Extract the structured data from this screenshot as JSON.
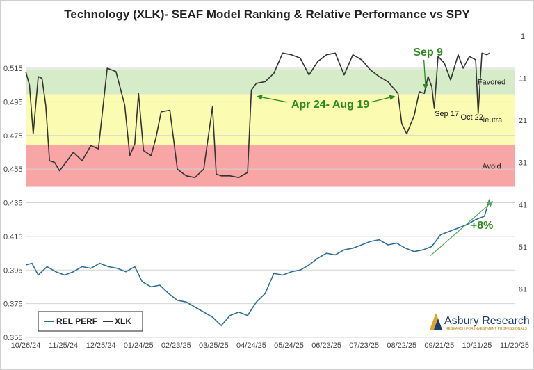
{
  "chart_data": {
    "type": "line",
    "title": "Technology (XLK)- SEAF Model Ranking & Relative Performance vs SPY",
    "left_axis": {
      "ticks": [
        0.355,
        0.375,
        0.395,
        0.415,
        0.435,
        0.455,
        0.475,
        0.495,
        0.515
      ],
      "range": [
        0.355,
        0.539
      ]
    },
    "right_axis": {
      "ticks": [
        1,
        11,
        21,
        31,
        41,
        51,
        61
      ],
      "range": [
        -1.0,
        72.5
      ]
    },
    "x_axis": {
      "labels": [
        "10/26/24",
        "11/25/24",
        "12/25/24",
        "01/24/25",
        "02/23/25",
        "03/25/25",
        "04/24/25",
        "05/24/25",
        "06/23/25",
        "07/23/25",
        "08/22/25",
        "09/21/25",
        "10/21/25",
        "11/20/25"
      ],
      "range": [
        "2024-10-26",
        "2025-11-20"
      ]
    },
    "zones": [
      {
        "label": "Favored",
        "from": 0.5145,
        "to": 0.4995,
        "color": "#d6ebc8"
      },
      {
        "label": "Neutral",
        "from": 0.4995,
        "to": 0.4695,
        "color": "#fbfbb2"
      },
      {
        "label": "Avoid",
        "from": 0.4695,
        "to": 0.4445,
        "color": "#f7a5a5"
      }
    ],
    "series": [
      {
        "name": "REL PERF",
        "color": "#2a6f97",
        "points": [
          [
            "2024-10-26",
            0.398
          ],
          [
            "2024-10-31",
            0.399
          ],
          [
            "2024-11-05",
            0.392
          ],
          [
            "2024-11-12",
            0.397
          ],
          [
            "2024-11-19",
            0.394
          ],
          [
            "2024-11-26",
            0.392
          ],
          [
            "2024-12-03",
            0.394
          ],
          [
            "2024-12-10",
            0.397
          ],
          [
            "2024-12-17",
            0.396
          ],
          [
            "2024-12-24",
            0.399
          ],
          [
            "2024-12-31",
            0.397
          ],
          [
            "2025-01-07",
            0.396
          ],
          [
            "2025-01-14",
            0.394
          ],
          [
            "2025-01-21",
            0.397
          ],
          [
            "2025-01-27",
            0.388
          ],
          [
            "2025-02-03",
            0.385
          ],
          [
            "2025-02-10",
            0.386
          ],
          [
            "2025-02-17",
            0.381
          ],
          [
            "2025-02-24",
            0.377
          ],
          [
            "2025-03-03",
            0.376
          ],
          [
            "2025-03-10",
            0.373
          ],
          [
            "2025-03-17",
            0.37
          ],
          [
            "2025-03-24",
            0.367
          ],
          [
            "2025-03-31",
            0.362
          ],
          [
            "2025-04-07",
            0.368
          ],
          [
            "2025-04-14",
            0.37
          ],
          [
            "2025-04-21",
            0.368
          ],
          [
            "2025-04-28",
            0.376
          ],
          [
            "2025-05-05",
            0.381
          ],
          [
            "2025-05-12",
            0.393
          ],
          [
            "2025-05-19",
            0.392
          ],
          [
            "2025-05-26",
            0.394
          ],
          [
            "2025-06-02",
            0.395
          ],
          [
            "2025-06-09",
            0.398
          ],
          [
            "2025-06-16",
            0.402
          ],
          [
            "2025-06-23",
            0.405
          ],
          [
            "2025-06-30",
            0.404
          ],
          [
            "2025-07-07",
            0.407
          ],
          [
            "2025-07-14",
            0.408
          ],
          [
            "2025-07-21",
            0.41
          ],
          [
            "2025-07-28",
            0.412
          ],
          [
            "2025-08-04",
            0.413
          ],
          [
            "2025-08-11",
            0.41
          ],
          [
            "2025-08-18",
            0.411
          ],
          [
            "2025-08-25",
            0.408
          ],
          [
            "2025-09-01",
            0.406
          ],
          [
            "2025-09-08",
            0.407
          ],
          [
            "2025-09-15",
            0.409
          ],
          [
            "2025-09-22",
            0.416
          ],
          [
            "2025-09-29",
            0.418
          ],
          [
            "2025-10-06",
            0.42
          ],
          [
            "2025-10-13",
            0.422
          ],
          [
            "2025-10-20",
            0.425
          ],
          [
            "2025-10-27",
            0.427
          ],
          [
            "2025-10-31",
            0.437
          ]
        ]
      },
      {
        "name": "XLK",
        "color": "#333333",
        "points": [
          [
            "2024-10-26",
            0.513
          ],
          [
            "2024-10-29",
            0.505
          ],
          [
            "2024-11-01",
            0.476
          ],
          [
            "2024-11-05",
            0.51
          ],
          [
            "2024-11-08",
            0.509
          ],
          [
            "2024-11-11",
            0.493
          ],
          [
            "2024-11-14",
            0.46
          ],
          [
            "2024-11-18",
            0.459
          ],
          [
            "2024-11-22",
            0.454
          ],
          [
            "2024-11-27",
            0.459
          ],
          [
            "2024-12-03",
            0.465
          ],
          [
            "2024-12-10",
            0.46
          ],
          [
            "2024-12-17",
            0.469
          ],
          [
            "2024-12-23",
            0.467
          ],
          [
            "2024-12-30",
            0.515
          ],
          [
            "2025-01-06",
            0.513
          ],
          [
            "2025-01-13",
            0.493
          ],
          [
            "2025-01-17",
            0.463
          ],
          [
            "2025-01-21",
            0.47
          ],
          [
            "2025-01-24",
            0.5
          ],
          [
            "2025-01-28",
            0.466
          ],
          [
            "2025-02-03",
            0.463
          ],
          [
            "2025-02-07",
            0.474
          ],
          [
            "2025-02-11",
            0.489
          ],
          [
            "2025-02-18",
            0.49
          ],
          [
            "2025-02-24",
            0.455
          ],
          [
            "2025-03-03",
            0.451
          ],
          [
            "2025-03-10",
            0.45
          ],
          [
            "2025-03-17",
            0.455
          ],
          [
            "2025-03-24",
            0.492
          ],
          [
            "2025-03-27",
            0.452
          ],
          [
            "2025-03-31",
            0.451
          ],
          [
            "2025-04-07",
            0.451
          ],
          [
            "2025-04-14",
            0.45
          ],
          [
            "2025-04-21",
            0.453
          ],
          [
            "2025-04-24",
            0.502
          ],
          [
            "2025-04-28",
            0.506
          ],
          [
            "2025-05-05",
            0.507
          ],
          [
            "2025-05-12",
            0.512
          ],
          [
            "2025-05-19",
            0.524
          ],
          [
            "2025-05-26",
            0.523
          ],
          [
            "2025-06-02",
            0.521
          ],
          [
            "2025-06-09",
            0.511
          ],
          [
            "2025-06-16",
            0.519
          ],
          [
            "2025-06-23",
            0.523
          ],
          [
            "2025-06-30",
            0.524
          ],
          [
            "2025-07-07",
            0.511
          ],
          [
            "2025-07-14",
            0.523
          ],
          [
            "2025-07-21",
            0.52
          ],
          [
            "2025-07-28",
            0.514
          ],
          [
            "2025-08-04",
            0.51
          ],
          [
            "2025-08-11",
            0.507
          ],
          [
            "2025-08-19",
            0.5
          ],
          [
            "2025-08-22",
            0.482
          ],
          [
            "2025-08-26",
            0.476
          ],
          [
            "2025-09-01",
            0.487
          ],
          [
            "2025-09-05",
            0.501
          ],
          [
            "2025-09-09",
            0.5
          ],
          [
            "2025-09-12",
            0.51
          ],
          [
            "2025-09-15",
            0.504
          ],
          [
            "2025-09-17",
            0.491
          ],
          [
            "2025-09-20",
            0.522
          ],
          [
            "2025-09-25",
            0.518
          ],
          [
            "2025-09-30",
            0.508
          ],
          [
            "2025-10-06",
            0.523
          ],
          [
            "2025-10-10",
            0.515
          ],
          [
            "2025-10-15",
            0.522
          ],
          [
            "2025-10-20",
            0.52
          ],
          [
            "2025-10-22",
            0.488
          ],
          [
            "2025-10-25",
            0.524
          ],
          [
            "2025-10-29",
            0.523
          ],
          [
            "2025-10-31",
            0.524
          ]
        ]
      }
    ],
    "annotations": [
      {
        "text": "Apr 24- Aug 19",
        "color": "#2e8b1d",
        "bold": true,
        "x": "2025-06-26",
        "y": 0.4915,
        "arrows_to": [
          [
            "2025-04-26",
            0.4998
          ],
          [
            "2025-08-19",
            0.4998
          ]
        ]
      },
      {
        "text": "Sep 9",
        "color": "#2e8b1d",
        "bold": true,
        "x": "2025-09-12",
        "y": 0.5225,
        "arrows_to": [
          [
            "2025-09-09",
            0.5015
          ]
        ]
      },
      {
        "text": "Sep 17",
        "color": "#111111",
        "bold": false,
        "x": "2025-09-27",
        "y": 0.4865,
        "arrows_to": []
      },
      {
        "text": "Oct 22",
        "color": "#111111",
        "bold": false,
        "x": "2025-10-17",
        "y": 0.4845,
        "arrows_to": []
      },
      {
        "text": "+8%",
        "color": "#2e8b1d",
        "bold": true,
        "x": "2025-10-25",
        "y": 0.4195,
        "arrows_to": []
      }
    ],
    "trend_arrow": {
      "from": [
        "2025-09-14",
        0.4036
      ],
      "to": [
        "2025-11-02",
        0.4355
      ],
      "color": "#4caf50"
    },
    "legend": {
      "placement": "bottom-left",
      "entries": [
        "REL PERF",
        "XLK"
      ]
    },
    "logo": {
      "name": "Asbury Research",
      "tagline": "RESEARCH FOR INVESTMENT PROFESSIONALS"
    },
    "grid": true
  }
}
